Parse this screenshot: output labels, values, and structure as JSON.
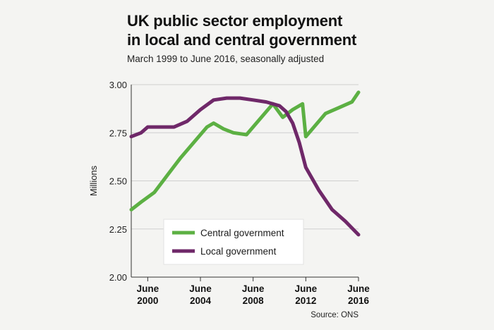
{
  "header": {
    "title_line1": "UK public sector employment",
    "title_line2": "in local and central government",
    "subtitle": "March 1999 to June 2016, seasonally adjusted"
  },
  "footer": {
    "source": "Source: ONS"
  },
  "colors": {
    "central": "#5cb043",
    "local": "#6f2869",
    "grid": "#cfcfcf",
    "axis": "#333333",
    "background": "#f4f4f2",
    "legend_bg": "#ffffff"
  },
  "chart_data": {
    "type": "line",
    "title": "UK public sector employment in local and central government",
    "subtitle": "March 1999 to June 2016, seasonally adjusted",
    "ylabel": "Millions",
    "xlabel": "",
    "xlim": [
      1999.25,
      2016.5
    ],
    "ylim": [
      2.0,
      3.0
    ],
    "yticks": [
      2.0,
      2.25,
      2.5,
      2.75,
      3.0
    ],
    "ytick_labels": [
      "2.00",
      "2.25",
      "2.50",
      "2.75",
      "3.00"
    ],
    "xticks": [
      {
        "x": 2000.5,
        "line1": "June",
        "line2": "2000"
      },
      {
        "x": 2004.5,
        "line1": "June",
        "line2": "2004"
      },
      {
        "x": 2008.5,
        "line1": "June",
        "line2": "2008"
      },
      {
        "x": 2012.5,
        "line1": "June",
        "line2": "2012"
      },
      {
        "x": 2016.5,
        "line1": "June",
        "line2": "2016"
      }
    ],
    "grid": true,
    "legend_position": "bottom-center",
    "series": [
      {
        "name": "Central government",
        "color": "#5cb043",
        "x": [
          1999.25,
          2000.0,
          2001.0,
          2002.0,
          2003.0,
          2004.0,
          2005.0,
          2005.5,
          2006.25,
          2007.0,
          2008.0,
          2009.0,
          2010.0,
          2010.75,
          2011.5,
          2012.25,
          2012.5,
          2013.0,
          2014.0,
          2015.0,
          2016.0,
          2016.5
        ],
        "y": [
          2.35,
          2.39,
          2.44,
          2.53,
          2.62,
          2.7,
          2.78,
          2.8,
          2.77,
          2.75,
          2.74,
          2.82,
          2.9,
          2.83,
          2.87,
          2.9,
          2.73,
          2.77,
          2.85,
          2.88,
          2.91,
          2.96
        ]
      },
      {
        "name": "Local government",
        "color": "#6f2869",
        "x": [
          1999.25,
          2000.0,
          2000.5,
          2001.5,
          2002.5,
          2003.5,
          2004.5,
          2005.5,
          2006.5,
          2007.5,
          2008.5,
          2009.5,
          2010.5,
          2011.0,
          2011.5,
          2012.0,
          2012.5,
          2013.5,
          2014.5,
          2015.5,
          2016.5
        ],
        "y": [
          2.73,
          2.75,
          2.78,
          2.78,
          2.78,
          2.81,
          2.87,
          2.92,
          2.93,
          2.93,
          2.92,
          2.91,
          2.89,
          2.86,
          2.8,
          2.7,
          2.57,
          2.45,
          2.35,
          2.29,
          2.22
        ]
      }
    ]
  }
}
